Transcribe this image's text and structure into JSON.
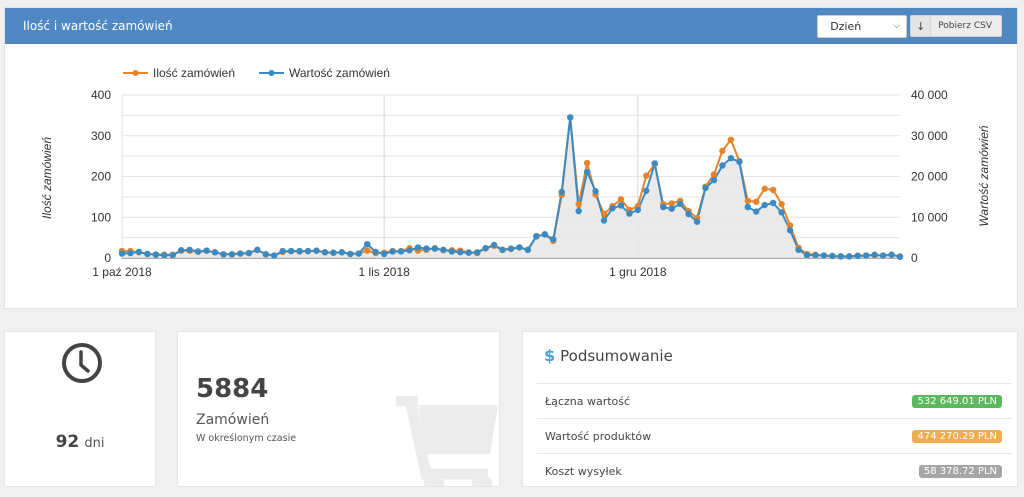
{
  "panel": {
    "title": "Ilość i wartość zamówień",
    "period_select": {
      "value": "Dzień"
    },
    "csv_button": {
      "icon": "arrow-down-icon",
      "label": "Pobierz CSV"
    }
  },
  "chart_data": {
    "type": "line",
    "title": "",
    "legend": [
      "Ilość zamówień",
      "Wartość zamówień"
    ],
    "legend_position": "top",
    "xlabel": "",
    "ylabel": "Ilość zamówień",
    "ylabel_right": "Wartość zamówień",
    "ylim": [
      0,
      400
    ],
    "ylim_right": [
      0,
      40000
    ],
    "yticks": [
      "0",
      "100",
      "200",
      "300",
      "400"
    ],
    "yticks_right": [
      "0",
      "10 000",
      "20 000",
      "30 000",
      "40 000"
    ],
    "xtick_labels": [
      {
        "label": "1 paź 2018",
        "index": 0
      },
      {
        "label": "1 lis 2018",
        "index": 31
      },
      {
        "label": "1 gru 2018",
        "index": 61
      }
    ],
    "grid": true,
    "colors": {
      "count": "#e8832a",
      "value": "#3b8bc2",
      "area": "#e6e6e8"
    },
    "series": [
      {
        "name": "Ilość zamówień",
        "axis": "left",
        "values": [
          17,
          17,
          14,
          10,
          9,
          8,
          8,
          18,
          18,
          15,
          18,
          14,
          9,
          9,
          11,
          12,
          20,
          9,
          6,
          15,
          17,
          16,
          17,
          18,
          14,
          13,
          14,
          10,
          11,
          18,
          12,
          13,
          17,
          17,
          24,
          18,
          20,
          24,
          19,
          19,
          18,
          14,
          12,
          24,
          30,
          20,
          22,
          26,
          20,
          54,
          58,
          42,
          155,
          345,
          132,
          233,
          156,
          108,
          127,
          144,
          118,
          127,
          202,
          230,
          132,
          134,
          140,
          115,
          98,
          175,
          205,
          263,
          290,
          238,
          140,
          138,
          170,
          167,
          132,
          80,
          25,
          10,
          8,
          6,
          5,
          4,
          4,
          6,
          6,
          7,
          6,
          8,
          4
        ]
      },
      {
        "name": "Wartość zamówień",
        "axis": "right",
        "values": [
          1100,
          1200,
          1500,
          1000,
          800,
          700,
          700,
          1900,
          2000,
          1600,
          1800,
          1400,
          900,
          900,
          1100,
          1200,
          2000,
          900,
          600,
          1700,
          1700,
          1700,
          1700,
          1800,
          1400,
          1300,
          1400,
          1000,
          1100,
          3400,
          1500,
          1000,
          1600,
          1600,
          1900,
          2600,
          2300,
          2300,
          2000,
          1600,
          1400,
          1300,
          1400,
          2400,
          3200,
          2000,
          2300,
          2600,
          2000,
          5300,
          5800,
          4600,
          16200,
          34500,
          11500,
          21100,
          16400,
          9200,
          12200,
          12900,
          10900,
          11800,
          16500,
          23200,
          12500,
          12100,
          13300,
          10800,
          8900,
          17200,
          19100,
          22700,
          24500,
          23600,
          12500,
          11400,
          13000,
          13500,
          11200,
          6800,
          2000,
          700,
          700,
          600,
          500,
          400,
          400,
          500,
          600,
          800,
          600,
          800,
          300
        ]
      }
    ]
  },
  "cards": {
    "days": {
      "icon": "clock-icon",
      "value": "92",
      "unit": "dni"
    },
    "orders": {
      "icon": "cart-icon",
      "value": "5884",
      "label": "Zamówień",
      "sublabel": "W określonym czasie"
    },
    "summary": {
      "icon": "dollar-icon",
      "icon_glyph": "$",
      "title": "Podsumowanie",
      "rows": [
        {
          "label": "Łączna wartość",
          "value": "532 649.01 PLN",
          "color": "#5cb85c"
        },
        {
          "label": "Wartość produktów",
          "value": "474 270.29 PLN",
          "color": "#f0ad4e"
        },
        {
          "label": "Koszt wysyłek",
          "value": "58 378.72 PLN",
          "color": "#a6a6a6"
        }
      ]
    }
  }
}
